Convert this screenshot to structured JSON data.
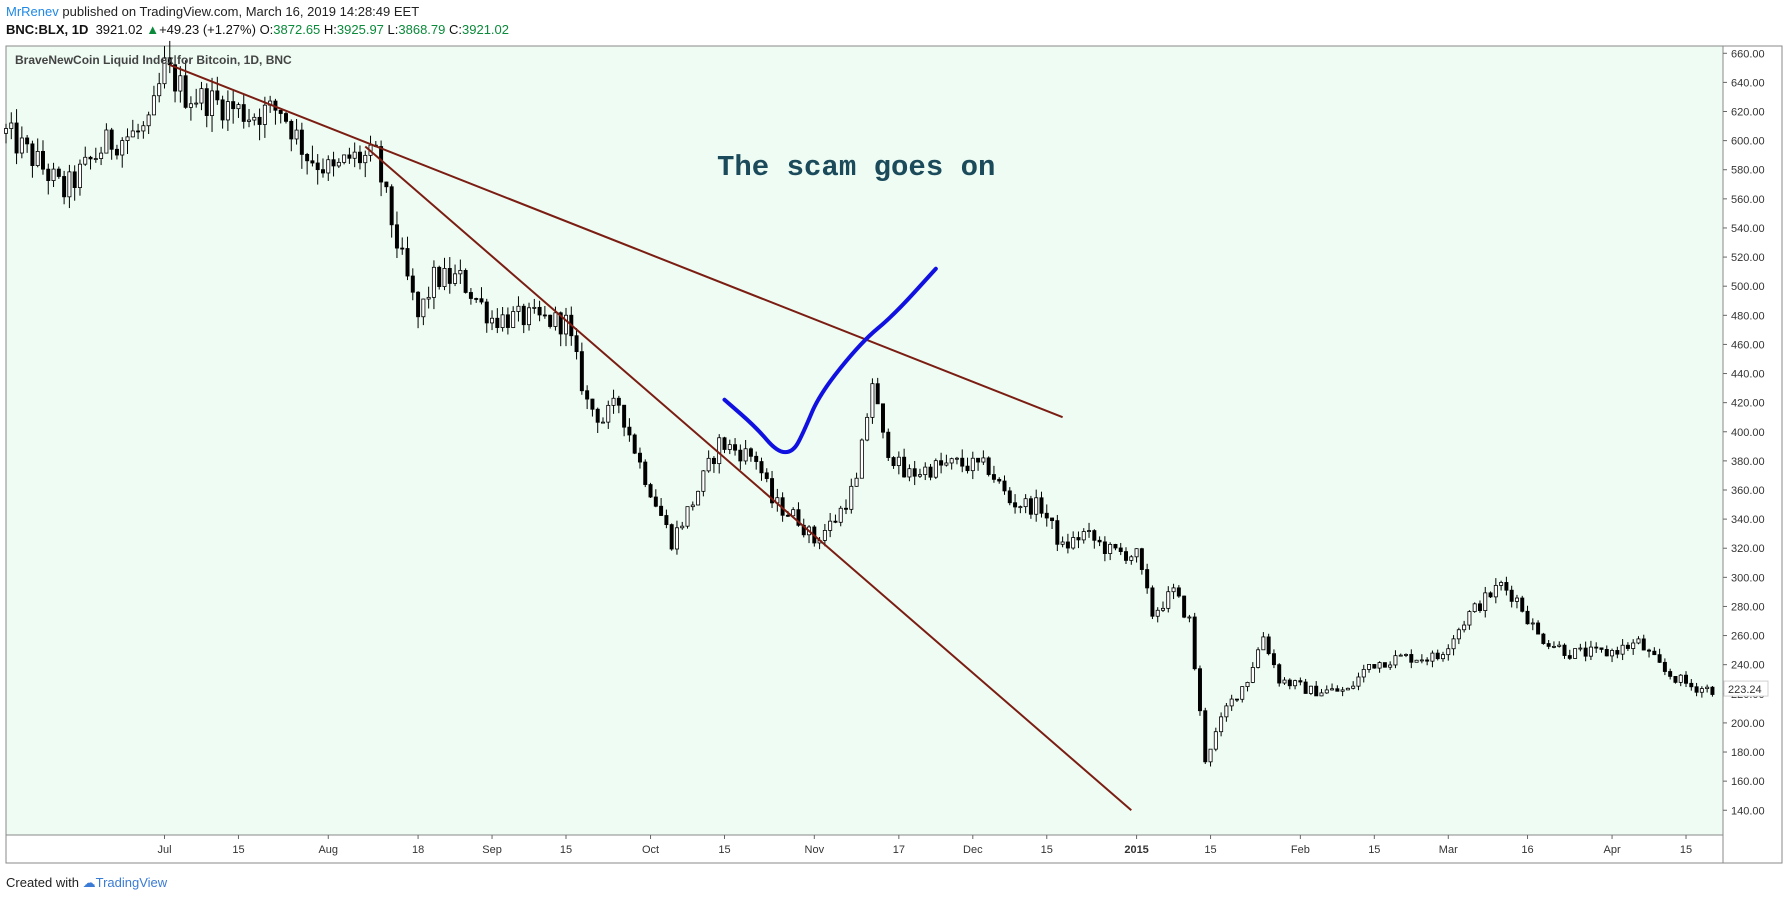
{
  "header": {
    "author": "MrRenev",
    "publish_text": "published on TradingView.com, March 16, 2019 14:28:49 EET",
    "symbol": "BNC:BLX, 1D",
    "last": "3921.02",
    "change": "+49.23 (+1.27%)",
    "o_label": "O:",
    "o_value": "3872.65",
    "h_label": "H:",
    "h_value": "3925.97",
    "l_label": "L:",
    "l_value": "3868.79",
    "c_label": "C:",
    "c_value": "3921.02"
  },
  "footer": {
    "created_with": "Created with",
    "brand": "TradingView"
  },
  "colors": {
    "background": "#eefcf3",
    "candle_up": "#ffffff",
    "candle_down": "#000000",
    "trendline": "#7b1d12",
    "annotation_curve": "#1010e0",
    "annotation_text": "#1b4a5a",
    "price_badge": "#ffffff"
  },
  "chart_data": {
    "type": "candlestick",
    "title": "BraveNewCoin Liquid Index for Bitcoin, 1D, BNC",
    "annotation": "The scam goes on",
    "current_price_label": "223.24",
    "ylim": [
      123,
      665
    ],
    "y_ticks": [
      660,
      640,
      620,
      600,
      580,
      560,
      540,
      520,
      500,
      480,
      460,
      440,
      420,
      400,
      380,
      360,
      340,
      320,
      300,
      280,
      260,
      240,
      220,
      200,
      180,
      160,
      140
    ],
    "y_tick_labels": [
      "660.00",
      "640.00",
      "620.00",
      "600.00",
      "580.00",
      "560.00",
      "540.00",
      "520.00",
      "500.00",
      "480.00",
      "460.00",
      "440.00",
      "420.00",
      "400.00",
      "380.00",
      "360.00",
      "340.00",
      "320.00",
      "300.00",
      "280.00",
      "260.00",
      "240.00",
      "220.00",
      "200.00",
      "180.00",
      "160.00",
      "140.00"
    ],
    "x_start": "2014-06-01",
    "x_end": "2015-04-22",
    "x_ticks": [
      {
        "date": "2014-07-01",
        "label": "Jul",
        "bold": false
      },
      {
        "date": "2014-07-15",
        "label": "15",
        "bold": false
      },
      {
        "date": "2014-08-01",
        "label": "Aug",
        "bold": false
      },
      {
        "date": "2014-08-18",
        "label": "18",
        "bold": false
      },
      {
        "date": "2014-09-01",
        "label": "Sep",
        "bold": false
      },
      {
        "date": "2014-09-15",
        "label": "15",
        "bold": false
      },
      {
        "date": "2014-10-01",
        "label": "Oct",
        "bold": false
      },
      {
        "date": "2014-10-15",
        "label": "15",
        "bold": false
      },
      {
        "date": "2014-11-01",
        "label": "Nov",
        "bold": false
      },
      {
        "date": "2014-11-17",
        "label": "17",
        "bold": false
      },
      {
        "date": "2014-12-01",
        "label": "Dec",
        "bold": false
      },
      {
        "date": "2014-12-15",
        "label": "15",
        "bold": false
      },
      {
        "date": "2015-01-01",
        "label": "2015",
        "bold": true
      },
      {
        "date": "2015-01-15",
        "label": "15",
        "bold": false
      },
      {
        "date": "2015-02-01",
        "label": "Feb",
        "bold": false
      },
      {
        "date": "2015-02-15",
        "label": "15",
        "bold": false
      },
      {
        "date": "2015-03-01",
        "label": "Mar",
        "bold": false
      },
      {
        "date": "2015-03-16",
        "label": "16",
        "bold": false
      },
      {
        "date": "2015-04-01",
        "label": "Apr",
        "bold": false
      },
      {
        "date": "2015-04-15",
        "label": "15",
        "bold": false
      }
    ],
    "trendlines": [
      {
        "from": {
          "date": "2014-07-02",
          "value": 652
        },
        "to": {
          "date": "2014-12-18",
          "value": 410
        }
      },
      {
        "from": {
          "date": "2014-08-08",
          "value": 596
        },
        "to": {
          "date": "2014-12-31",
          "value": 140
        }
      }
    ],
    "annotation_curve": [
      {
        "date": "2014-10-15",
        "value": 422
      },
      {
        "date": "2014-10-21",
        "value": 403
      },
      {
        "date": "2014-10-25",
        "value": 386
      },
      {
        "date": "2014-10-28",
        "value": 386
      },
      {
        "date": "2014-10-30",
        "value": 400
      },
      {
        "date": "2014-11-02",
        "value": 426
      },
      {
        "date": "2014-11-10",
        "value": 462
      },
      {
        "date": "2014-11-16",
        "value": 480
      },
      {
        "date": "2014-11-24",
        "value": 512
      }
    ],
    "anchors": [
      {
        "date": "2014-06-01",
        "value": 605
      },
      {
        "date": "2014-06-07",
        "value": 585
      },
      {
        "date": "2014-06-12",
        "value": 565
      },
      {
        "date": "2014-06-20",
        "value": 598
      },
      {
        "date": "2014-06-28",
        "value": 608
      },
      {
        "date": "2014-07-01",
        "value": 650
      },
      {
        "date": "2014-07-05",
        "value": 632
      },
      {
        "date": "2014-07-12",
        "value": 625
      },
      {
        "date": "2014-07-17",
        "value": 618
      },
      {
        "date": "2014-07-23",
        "value": 622
      },
      {
        "date": "2014-07-28",
        "value": 590
      },
      {
        "date": "2014-08-02",
        "value": 578
      },
      {
        "date": "2014-08-05",
        "value": 588
      },
      {
        "date": "2014-08-10",
        "value": 588
      },
      {
        "date": "2014-08-14",
        "value": 530
      },
      {
        "date": "2014-08-18",
        "value": 478
      },
      {
        "date": "2014-08-21",
        "value": 505
      },
      {
        "date": "2014-08-26",
        "value": 505
      },
      {
        "date": "2014-09-01",
        "value": 478
      },
      {
        "date": "2014-09-08",
        "value": 478
      },
      {
        "date": "2014-09-15",
        "value": 475
      },
      {
        "date": "2014-09-19",
        "value": 420
      },
      {
        "date": "2014-09-22",
        "value": 408
      },
      {
        "date": "2014-09-25",
        "value": 420
      },
      {
        "date": "2014-09-29",
        "value": 378
      },
      {
        "date": "2014-10-05",
        "value": 325
      },
      {
        "date": "2014-10-09",
        "value": 352
      },
      {
        "date": "2014-10-14",
        "value": 392
      },
      {
        "date": "2014-10-21",
        "value": 382
      },
      {
        "date": "2014-10-24",
        "value": 352
      },
      {
        "date": "2014-10-29",
        "value": 340
      },
      {
        "date": "2014-11-01",
        "value": 325
      },
      {
        "date": "2014-11-05",
        "value": 340
      },
      {
        "date": "2014-11-09",
        "value": 365
      },
      {
        "date": "2014-11-12",
        "value": 435
      },
      {
        "date": "2014-11-14",
        "value": 395
      },
      {
        "date": "2014-11-18",
        "value": 370
      },
      {
        "date": "2014-11-23",
        "value": 375
      },
      {
        "date": "2014-11-28",
        "value": 378
      },
      {
        "date": "2014-12-04",
        "value": 375
      },
      {
        "date": "2014-12-08",
        "value": 352
      },
      {
        "date": "2014-12-14",
        "value": 348
      },
      {
        "date": "2014-12-18",
        "value": 320
      },
      {
        "date": "2014-12-22",
        "value": 330
      },
      {
        "date": "2014-12-27",
        "value": 318
      },
      {
        "date": "2015-01-01",
        "value": 315
      },
      {
        "date": "2015-01-04",
        "value": 275
      },
      {
        "date": "2015-01-08",
        "value": 290
      },
      {
        "date": "2015-01-11",
        "value": 270
      },
      {
        "date": "2015-01-14",
        "value": 175
      },
      {
        "date": "2015-01-18",
        "value": 210
      },
      {
        "date": "2015-01-22",
        "value": 230
      },
      {
        "date": "2015-01-25",
        "value": 260
      },
      {
        "date": "2015-01-28",
        "value": 230
      },
      {
        "date": "2015-02-03",
        "value": 222
      },
      {
        "date": "2015-02-10",
        "value": 222
      },
      {
        "date": "2015-02-14",
        "value": 240
      },
      {
        "date": "2015-02-20",
        "value": 245
      },
      {
        "date": "2015-02-27",
        "value": 245
      },
      {
        "date": "2015-03-05",
        "value": 275
      },
      {
        "date": "2015-03-11",
        "value": 295
      },
      {
        "date": "2015-03-14",
        "value": 285
      },
      {
        "date": "2015-03-18",
        "value": 260
      },
      {
        "date": "2015-03-24",
        "value": 248
      },
      {
        "date": "2015-03-31",
        "value": 248
      },
      {
        "date": "2015-04-06",
        "value": 255
      },
      {
        "date": "2015-04-11",
        "value": 235
      },
      {
        "date": "2015-04-16",
        "value": 225
      },
      {
        "date": "2015-04-20",
        "value": 223
      }
    ]
  }
}
